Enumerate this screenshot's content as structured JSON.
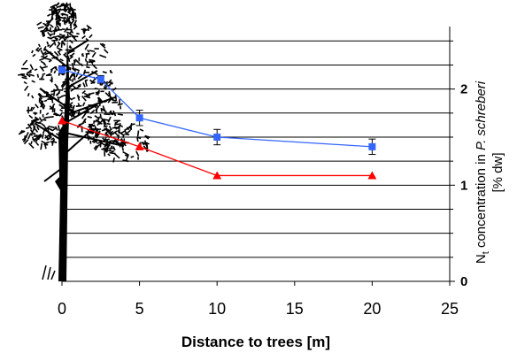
{
  "chart_data": {
    "type": "line",
    "title": "",
    "xlabel": "Distance to trees [m]",
    "ylabel": {
      "prefix": "N",
      "subscript": "t",
      "middle": " concentration in ",
      "species": "P. schreberi",
      "unit": "[% dw]"
    },
    "xlim": [
      0,
      25
    ],
    "ylim": [
      0,
      2.65
    ],
    "x_ticks": [
      0,
      5,
      10,
      15,
      20,
      25
    ],
    "y_ticks": [
      0,
      1,
      2
    ],
    "y_axis_position": "right",
    "grid": "horizontal",
    "legend": "none",
    "series": [
      {
        "color": "#3366ff",
        "marker": "square",
        "x": [
          0,
          2.5,
          5,
          10,
          20
        ],
        "y": [
          2.2,
          2.1,
          1.7,
          1.5,
          1.4
        ],
        "error": [
          0.04,
          0.04,
          0.08,
          0.08,
          0.08
        ]
      },
      {
        "color": "#ff0000",
        "marker": "triangle",
        "x": [
          0,
          5,
          10,
          20
        ],
        "y": [
          1.67,
          1.4,
          1.1,
          1.1
        ],
        "error": [
          0,
          0,
          0,
          0
        ]
      }
    ],
    "decoration": "tree-silhouette"
  }
}
